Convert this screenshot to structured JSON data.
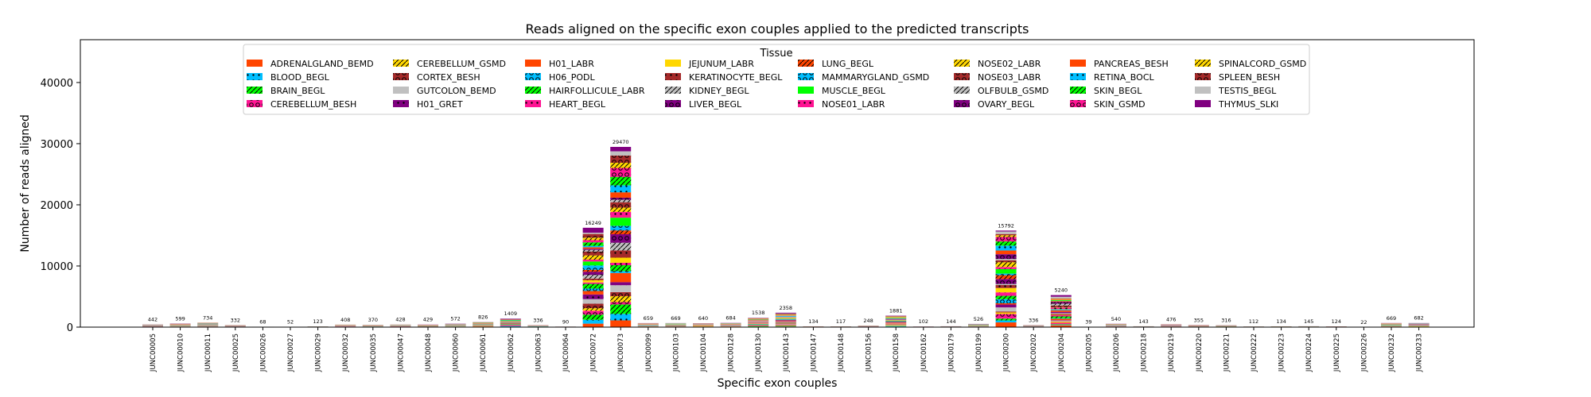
{
  "chart_data": {
    "type": "bar",
    "stacked": true,
    "title": "Reads aligned on the specific exon couples applied to the predicted transcripts",
    "xlabel": "Specific exon couples",
    "ylabel": "Number of reads aligned",
    "ylim": [
      0,
      47000
    ],
    "yticks": [
      0,
      10000,
      20000,
      30000,
      40000
    ],
    "grid": false,
    "legend": {
      "title": "Tissue",
      "placement": "top-center",
      "ncol": 8
    },
    "categories": [
      "JUNC00005",
      "JUNC00010",
      "JUNC00011",
      "JUNC00025",
      "JUNC00026",
      "JUNC00027",
      "JUNC00029",
      "JUNC00032",
      "JUNC00035",
      "JUNC00047",
      "JUNC00048",
      "JUNC00060",
      "JUNC00061",
      "JUNC00062",
      "JUNC00063",
      "JUNC00064",
      "JUNC00072",
      "JUNC00073",
      "JUNC00099",
      "JUNC00103",
      "JUNC00104",
      "JUNC00128",
      "JUNC00130",
      "JUNC00143",
      "JUNC00147",
      "JUNC00148",
      "JUNC00156",
      "JUNC00158",
      "JUNC00162",
      "JUNC00179",
      "JUNC00199",
      "JUNC00200",
      "JUNC00202",
      "JUNC00204",
      "JUNC00205",
      "JUNC00206",
      "JUNC00218",
      "JUNC00219",
      "JUNC00220",
      "JUNC00221",
      "JUNC00222",
      "JUNC00223",
      "JUNC00224",
      "JUNC00225",
      "JUNC00226",
      "JUNC00232",
      "JUNC00233"
    ],
    "totals": [
      442,
      599,
      734,
      332,
      68,
      52,
      123,
      408,
      370,
      428,
      429,
      572,
      826,
      1409,
      336,
      90,
      16249,
      29470,
      659,
      669,
      640,
      684,
      1538,
      2358,
      134,
      117,
      248,
      1881,
      102,
      144,
      526,
      15792,
      336,
      5240,
      39,
      540,
      143,
      476,
      355,
      316,
      112,
      134,
      145,
      124,
      22,
      669,
      682
    ],
    "series": [
      {
        "name": "ADRENALGLAND_BEMD",
        "color": "#ff4500",
        "hatch": ""
      },
      {
        "name": "BLOOD_BEGL",
        "color": "#00bfff",
        "hatch": "dot"
      },
      {
        "name": "BRAIN_BEGL",
        "color": "#00ff00",
        "hatch": "slash"
      },
      {
        "name": "CEREBELLUM_BESH",
        "color": "#ff1493",
        "hatch": "circle"
      },
      {
        "name": "CEREBELLUM_GSMD",
        "color": "#ffd700",
        "hatch": "slash"
      },
      {
        "name": "CORTEX_BESH",
        "color": "#a52a2a",
        "hatch": "circle"
      },
      {
        "name": "GUTCOLON_BEMD",
        "color": "#c0c0c0",
        "hatch": ""
      },
      {
        "name": "H01_GRET",
        "color": "#800080",
        "hatch": "dot"
      },
      {
        "name": "H01_LABR",
        "color": "#ff4500",
        "hatch": ""
      },
      {
        "name": "H06_PODL",
        "color": "#00bfff",
        "hatch": "circle"
      },
      {
        "name": "HAIRFOLLICULE_LABR",
        "color": "#00ff00",
        "hatch": "slash"
      },
      {
        "name": "HEART_BEGL",
        "color": "#ff1493",
        "hatch": "dot"
      },
      {
        "name": "JEJUNUM_LABR",
        "color": "#ffd700",
        "hatch": ""
      },
      {
        "name": "KERATINOCYTE_BEGL",
        "color": "#a52a2a",
        "hatch": "dot"
      },
      {
        "name": "KIDNEY_BEGL",
        "color": "#c0c0c0",
        "hatch": "slash"
      },
      {
        "name": "LIVER_BEGL",
        "color": "#800080",
        "hatch": "circle"
      },
      {
        "name": "LUNG_BEGL",
        "color": "#ff4500",
        "hatch": "slash"
      },
      {
        "name": "MAMMARYGLAND_GSMD",
        "color": "#00bfff",
        "hatch": "circle"
      },
      {
        "name": "MUSCLE_BEGL",
        "color": "#00ff00",
        "hatch": ""
      },
      {
        "name": "NOSE01_LABR",
        "color": "#ff1493",
        "hatch": "dot"
      },
      {
        "name": "NOSE02_LABR",
        "color": "#ffd700",
        "hatch": "slash"
      },
      {
        "name": "NOSE03_LABR",
        "color": "#a52a2a",
        "hatch": "circle"
      },
      {
        "name": "OLFBULB_GSMD",
        "color": "#c0c0c0",
        "hatch": "slash"
      },
      {
        "name": "OVARY_BEGL",
        "color": "#800080",
        "hatch": "circle"
      },
      {
        "name": "PANCREAS_BESH",
        "color": "#ff4500",
        "hatch": ""
      },
      {
        "name": "RETINA_BOCL",
        "color": "#00bfff",
        "hatch": "dot"
      },
      {
        "name": "SKIN_BEGL",
        "color": "#00ff00",
        "hatch": "slash"
      },
      {
        "name": "SKIN_GSMD",
        "color": "#ff1493",
        "hatch": "circle"
      },
      {
        "name": "SPINALCORD_GSMD",
        "color": "#ffd700",
        "hatch": "slash"
      },
      {
        "name": "SPLEEN_BESH",
        "color": "#a52a2a",
        "hatch": "circle"
      },
      {
        "name": "TESTIS_BEGL",
        "color": "#c0c0c0",
        "hatch": ""
      },
      {
        "name": "THYMUS_SLKI",
        "color": "#800080",
        "hatch": ""
      }
    ]
  }
}
